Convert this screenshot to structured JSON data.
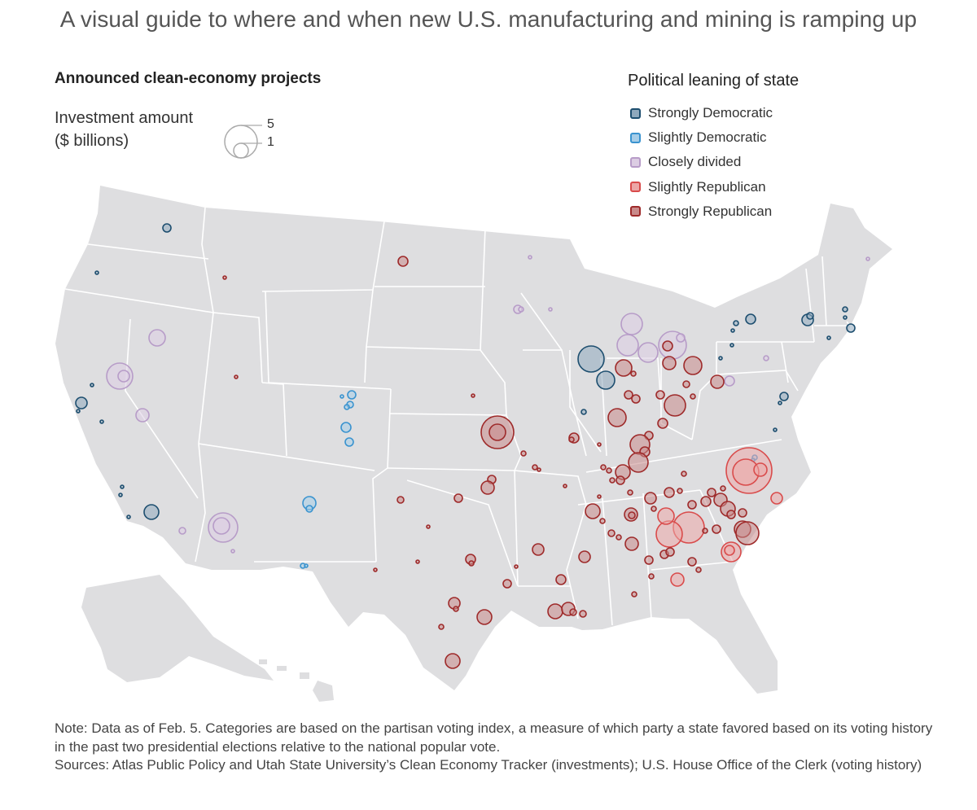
{
  "headline": "A visual guide to where and when new U.S. manufacturing and mining is ramping up",
  "chart": {
    "title": "Announced clean-economy projects",
    "size_legend": {
      "title_line1": "Investment amount",
      "title_line2": "($ billions)",
      "large_value": "5",
      "small_value": "1",
      "large_amount": 5,
      "small_amount": 1
    }
  },
  "lean_legend": {
    "title": "Political leaning of state",
    "items": [
      {
        "key": "sd",
        "label": "Strongly Democratic",
        "stroke": "#1d4e6f",
        "fill": "#8fa9bd"
      },
      {
        "key": "ld",
        "label": "Slightly Democratic",
        "stroke": "#3a93cf",
        "fill": "#a6cde8"
      },
      {
        "key": "cd",
        "label": "Closely divided",
        "stroke": "#b79cc8",
        "fill": "#dccde3"
      },
      {
        "key": "lr",
        "label": "Slightly Republican",
        "stroke": "#d94b4b",
        "fill": "#eca7a7"
      },
      {
        "key": "sr",
        "label": "Strongly Republican",
        "stroke": "#9e2a2a",
        "fill": "#c98a8a"
      }
    ]
  },
  "map_colors": {
    "land": "#dedee0",
    "borders": "#ffffff"
  },
  "footnote": {
    "note": "Note: Data as of Feb. 5. Categories are based on the partisan voting index, a measure of which party a state favored based on its voting history in the past two presidential elections relative to the national popular vote.",
    "sources": "Sources: Atlas Public Policy and Utah State University’s Clean Economy Tracker (investments); U.S. House Office of the Clerk (voting history)"
  }
}
